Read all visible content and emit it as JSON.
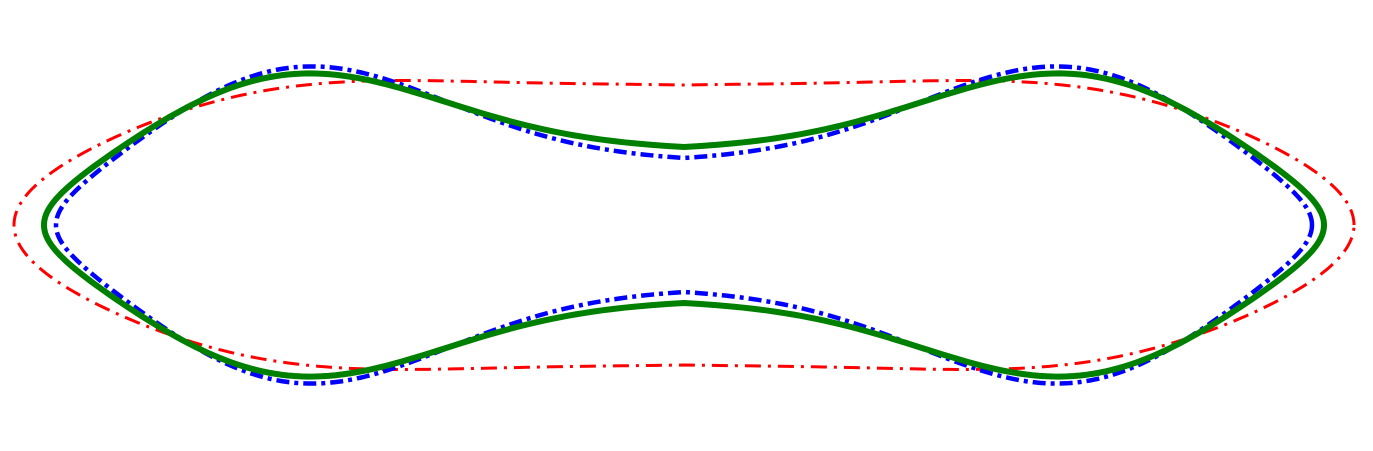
{
  "figure": {
    "curves": [
      {
        "key": "red",
        "color": "#ff0000",
        "style": "dash-dot",
        "shape": {
          "half_width": 670,
          "half_height": 173,
          "waist_half_height": 140
        }
      },
      {
        "key": "blue",
        "color": "#0000ff",
        "style": "dash-dot",
        "shape": {
          "half_width": 628,
          "half_height": 205,
          "waist_half_height": 67
        }
      },
      {
        "key": "green",
        "color": "#008000",
        "style": "solid",
        "shape": {
          "half_width": 640,
          "half_height": 195,
          "waist_half_height": 78
        }
      }
    ]
  }
}
